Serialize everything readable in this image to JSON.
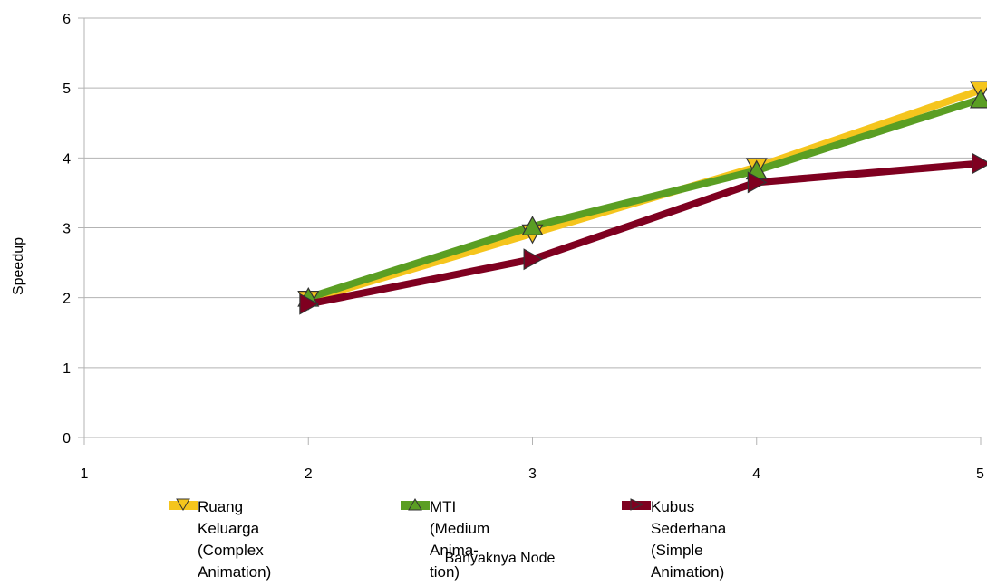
{
  "chart_data": {
    "type": "line",
    "x": [
      2,
      3,
      4,
      5
    ],
    "xticks": [
      1,
      2,
      3,
      4,
      5
    ],
    "yticks": [
      0,
      1,
      2,
      3,
      4,
      5,
      6
    ],
    "xlim": [
      1,
      5
    ],
    "ylim": [
      0,
      6
    ],
    "xlabel": "Banyaknya Node",
    "ylabel": "Speedup",
    "grid": "horizontal",
    "legend_position": "bottom",
    "series": [
      {
        "name": "Ruang Keluarga\n(Complex Animation)",
        "values": [
          1.97,
          2.92,
          3.87,
          4.97
        ],
        "color": "#f5c51d",
        "marker": "triangle-down"
      },
      {
        "name": "MTI (Medium Anima-\ntion)",
        "values": [
          2.0,
          3.02,
          3.82,
          4.84
        ],
        "color": "#5a9e23",
        "marker": "triangle-up"
      },
      {
        "name": "Kubus Sederhana\n(Simple Animation)",
        "values": [
          1.91,
          2.55,
          3.65,
          3.92
        ],
        "color": "#7f0020",
        "marker": "triangle-right"
      }
    ]
  }
}
